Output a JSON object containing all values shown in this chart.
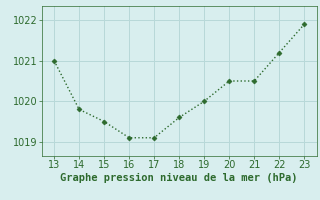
{
  "x": [
    13,
    14,
    15,
    16,
    17,
    18,
    19,
    20,
    21,
    22,
    23
  ],
  "y": [
    1021.0,
    1019.8,
    1019.5,
    1019.1,
    1019.1,
    1019.6,
    1020.0,
    1020.5,
    1020.5,
    1021.2,
    1021.9
  ],
  "line_color": "#2d6a2d",
  "marker": "D",
  "marker_size": 2.5,
  "line_width": 1.0,
  "line_style": "dotted",
  "background_color": "#d8eeee",
  "grid_color": "#b8d8d8",
  "xlabel": "Graphe pression niveau de la mer (hPa)",
  "xlabel_color": "#2d6a2d",
  "xlabel_fontsize": 7.5,
  "tick_color": "#2d6a2d",
  "tick_fontsize": 7,
  "xlim": [
    12.5,
    23.5
  ],
  "ylim": [
    1018.65,
    1022.35
  ],
  "yticks": [
    1019,
    1020,
    1021,
    1022
  ],
  "xticks": [
    13,
    14,
    15,
    16,
    17,
    18,
    19,
    20,
    21,
    22,
    23
  ]
}
